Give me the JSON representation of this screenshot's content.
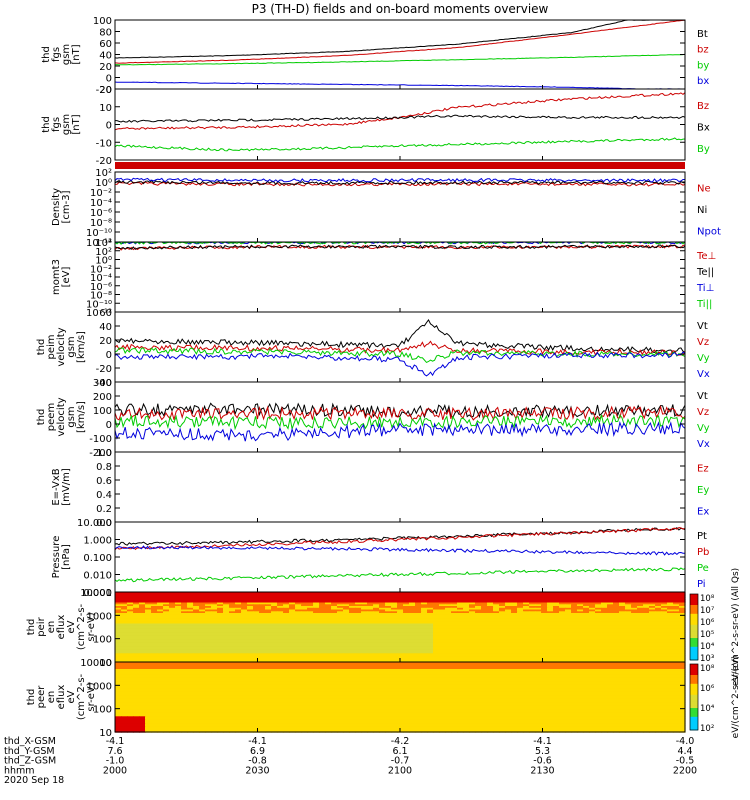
{
  "title": "P3 (TH-D) fields and on-board moments overview",
  "colors": {
    "black": "#000000",
    "red": "#cc0000",
    "green": "#00cc00",
    "blue": "#0000dd",
    "axis": "#000000"
  },
  "chart_data": [
    {
      "type": "line",
      "ylabel": [
        "thd",
        "fgs",
        "gsm",
        "[nT]"
      ],
      "ylim": [
        -20,
        100
      ],
      "ticks": [
        "100",
        "80",
        "60",
        "40",
        "20",
        "0",
        "-20"
      ],
      "legend": [
        {
          "text": "Bt",
          "color": "black"
        },
        {
          "text": "bz",
          "color": "red"
        },
        {
          "text": "by",
          "color": "green"
        },
        {
          "text": "bx",
          "color": "blue"
        }
      ],
      "series": [
        {
          "name": "Bt",
          "color": "black",
          "x": [
            0,
            0.2,
            0.4,
            0.6,
            0.8,
            0.9
          ],
          "y": [
            34,
            38,
            45,
            58,
            78,
            100
          ]
        },
        {
          "name": "bz",
          "color": "red",
          "x": [
            0,
            0.2,
            0.4,
            0.6,
            0.8,
            1.0
          ],
          "y": [
            25,
            30,
            38,
            52,
            75,
            100
          ]
        },
        {
          "name": "by",
          "color": "green",
          "x": [
            0,
            0.2,
            0.4,
            0.6,
            0.8,
            1.0
          ],
          "y": [
            22,
            24,
            27,
            31,
            35,
            40
          ]
        },
        {
          "name": "bx",
          "color": "blue",
          "x": [
            0,
            0.2,
            0.4,
            0.6,
            0.8,
            1.0
          ],
          "y": [
            -8,
            -10,
            -12,
            -14,
            -17,
            -22
          ]
        }
      ]
    },
    {
      "type": "line",
      "ylabel": [
        "thd",
        "fgs",
        "gsm",
        "[nT]"
      ],
      "ylim": [
        -25,
        25
      ],
      "ticks": [
        "20",
        "10",
        "0",
        "-10",
        "-20"
      ],
      "legend": [
        {
          "text": "Bz",
          "color": "red"
        },
        {
          "text": "Bx",
          "color": "black"
        },
        {
          "text": "By",
          "color": "green"
        }
      ],
      "series": [
        {
          "name": "Bz",
          "color": "red",
          "x": [
            0,
            0.2,
            0.4,
            0.5,
            0.6,
            0.8,
            1.0
          ],
          "y": [
            -3,
            -2,
            0,
            5,
            12,
            18,
            22
          ]
        },
        {
          "name": "Bx",
          "color": "black",
          "x": [
            0,
            0.2,
            0.4,
            0.6,
            0.8,
            1.0
          ],
          "y": [
            2,
            3,
            4,
            6,
            5,
            5
          ]
        },
        {
          "name": "By",
          "color": "green",
          "x": [
            0,
            0.2,
            0.35,
            0.5,
            0.7,
            1.0
          ],
          "y": [
            -15,
            -18,
            -17,
            -15,
            -13,
            -10
          ]
        }
      ]
    },
    {
      "type": "line",
      "ylabel": [
        "Density",
        "[cm-3]"
      ],
      "yscale": "log",
      "ylim": [
        1e-12,
        100.0
      ],
      "ticks": [
        "10²",
        "10⁰",
        "10⁻²",
        "10⁻⁴",
        "10⁻⁶",
        "10⁻⁸",
        "10⁻¹⁰",
        "10⁻¹²"
      ],
      "legend": [
        {
          "text": "Ne",
          "color": "red"
        },
        {
          "text": "Ni",
          "color": "black"
        },
        {
          "text": "Npot",
          "color": "blue"
        }
      ],
      "series": [
        {
          "name": "Ne",
          "color": "red",
          "x": [
            0,
            0.3,
            0.6,
            1.0
          ],
          "y": [
            0.5,
            0.3,
            0.4,
            0.3
          ]
        },
        {
          "name": "Ni",
          "color": "black",
          "x": [
            0,
            0.3,
            0.6,
            1.0
          ],
          "y": [
            1.0,
            0.6,
            0.8,
            0.7
          ]
        },
        {
          "name": "Npot",
          "color": "blue",
          "x": [
            0,
            0.3,
            0.6,
            1.0
          ],
          "y": [
            3,
            2,
            2.5,
            2
          ]
        }
      ]
    },
    {
      "type": "line",
      "ylabel": [
        "momt3",
        "[eV]"
      ],
      "yscale": "log",
      "ylim": [
        1e-12,
        10000.0
      ],
      "ticks": [
        "10⁴",
        "10²",
        "10⁰",
        "10⁻²",
        "10⁻⁴",
        "10⁻⁶",
        "10⁻⁸",
        "10⁻¹⁰",
        "10⁻¹²"
      ],
      "legend": [
        {
          "text": "Te⊥",
          "color": "red"
        },
        {
          "text": "Te||",
          "color": "black"
        },
        {
          "text": "Ti⊥",
          "color": "blue"
        },
        {
          "text": "Ti||",
          "color": "green"
        }
      ],
      "series": [
        {
          "name": "Te⊥",
          "color": "red",
          "x": [
            0,
            0.3,
            0.6,
            1.0
          ],
          "y": [
            300,
            800,
            600,
            900
          ]
        },
        {
          "name": "Te||",
          "color": "black",
          "x": [
            0,
            0.3,
            0.6,
            1.0
          ],
          "y": [
            400,
            900,
            700,
            1000
          ]
        },
        {
          "name": "Ti⊥",
          "color": "blue",
          "x": [
            0,
            0.3,
            0.6,
            1.0
          ],
          "y": [
            8000,
            9000,
            9000,
            9500
          ]
        },
        {
          "name": "Ti||",
          "color": "green",
          "x": [
            0,
            0.3,
            0.6,
            1.0
          ],
          "y": [
            7000,
            8000,
            8500,
            9000
          ]
        }
      ]
    },
    {
      "type": "line",
      "ylabel": [
        "thd",
        "peim",
        "velocity",
        "gsm",
        "[km/s]"
      ],
      "ylim": [
        -40,
        60
      ],
      "ticks": [
        "60",
        "40",
        "20",
        "0",
        "-20",
        "-40"
      ],
      "legend": [
        {
          "text": "Vt",
          "color": "black"
        },
        {
          "text": "Vz",
          "color": "red"
        },
        {
          "text": "Vy",
          "color": "green"
        },
        {
          "text": "Vx",
          "color": "blue"
        }
      ],
      "series": [
        {
          "name": "Vt",
          "color": "black",
          "x": [
            0,
            0.3,
            0.5,
            0.55,
            0.6,
            0.8,
            1.0
          ],
          "y": [
            20,
            15,
            12,
            45,
            15,
            8,
            5
          ]
        },
        {
          "name": "Vz",
          "color": "red",
          "x": [
            0,
            0.3,
            0.5,
            0.55,
            0.6,
            0.8,
            1.0
          ],
          "y": [
            10,
            8,
            5,
            15,
            5,
            3,
            2
          ]
        },
        {
          "name": "Vy",
          "color": "green",
          "x": [
            0,
            0.3,
            0.5,
            0.55,
            0.6,
            0.8,
            1.0
          ],
          "y": [
            5,
            3,
            0,
            -10,
            2,
            0,
            0
          ]
        },
        {
          "name": "Vx",
          "color": "blue",
          "x": [
            0,
            0.3,
            0.5,
            0.55,
            0.6,
            0.8,
            1.0
          ],
          "y": [
            -5,
            -3,
            -8,
            -30,
            -5,
            -2,
            -1
          ]
        }
      ]
    },
    {
      "type": "line",
      "ylabel": [
        "thd",
        "peem",
        "velocity",
        "gsm",
        "[km/s]"
      ],
      "ylim": [
        -200,
        300
      ],
      "ticks": [
        "300",
        "200",
        "100",
        "0",
        "-100",
        "-200"
      ],
      "legend": [
        {
          "text": "Vt",
          "color": "black"
        },
        {
          "text": "Vz",
          "color": "red"
        },
        {
          "text": "Vy",
          "color": "green"
        },
        {
          "text": "Vx",
          "color": "blue"
        }
      ],
      "series": [
        {
          "name": "Vt",
          "color": "black",
          "x": [
            0,
            0.25,
            0.5,
            0.75,
            1.0
          ],
          "y": [
            100,
            110,
            90,
            95,
            100
          ]
        },
        {
          "name": "Vz",
          "color": "red",
          "x": [
            0,
            0.25,
            0.5,
            0.75,
            1.0
          ],
          "y": [
            70,
            80,
            70,
            75,
            80
          ]
        },
        {
          "name": "Vy",
          "color": "green",
          "x": [
            0,
            0.25,
            0.5,
            0.75,
            1.0
          ],
          "y": [
            20,
            10,
            10,
            20,
            20
          ]
        },
        {
          "name": "Vx",
          "color": "blue",
          "x": [
            0,
            0.25,
            0.5,
            0.75,
            1.0
          ],
          "y": [
            -60,
            -80,
            -40,
            -40,
            -30
          ]
        }
      ]
    },
    {
      "type": "line",
      "ylabel": [
        "E=-VxB",
        "[mV/m]"
      ],
      "ylim": [
        0,
        1
      ],
      "ticks": [
        "1.0",
        "0.8",
        "0.6",
        "0.4",
        "0.2",
        "0.0"
      ],
      "legend": [
        {
          "text": "Ez",
          "color": "red"
        },
        {
          "text": "Ey",
          "color": "green"
        },
        {
          "text": "Ex",
          "color": "blue"
        }
      ],
      "series": []
    },
    {
      "type": "line",
      "ylabel": [
        "Pressure",
        "[nPa]"
      ],
      "yscale": "log",
      "ylim": [
        0.001,
        20
      ],
      "ticks": [
        "10.000",
        "1.000",
        "0.100",
        "0.010",
        "0.001"
      ],
      "legend": [
        {
          "text": "Pt",
          "color": "black"
        },
        {
          "text": "Pb",
          "color": "red"
        },
        {
          "text": "Pe",
          "color": "green"
        },
        {
          "text": "Pi",
          "color": "blue"
        }
      ],
      "series": [
        {
          "name": "Pt",
          "color": "black",
          "x": [
            0,
            0.2,
            0.4,
            0.6,
            0.8,
            1.0
          ],
          "y": [
            0.9,
            1.1,
            1.6,
            2.5,
            4.5,
            8.0
          ]
        },
        {
          "name": "Pb",
          "color": "red",
          "x": [
            0,
            0.2,
            0.4,
            0.6,
            0.8,
            1.0
          ],
          "y": [
            0.45,
            0.7,
            1.2,
            2.2,
            4.2,
            7.8
          ]
        },
        {
          "name": "Pe",
          "color": "green",
          "x": [
            0,
            0.2,
            0.4,
            0.6,
            0.8,
            1.0
          ],
          "y": [
            0.005,
            0.007,
            0.01,
            0.014,
            0.02,
            0.025
          ]
        },
        {
          "name": "Pi",
          "color": "blue",
          "x": [
            0,
            0.2,
            0.4,
            0.6,
            0.8,
            1.0
          ],
          "y": [
            0.55,
            0.5,
            0.45,
            0.35,
            0.28,
            0.22
          ]
        }
      ]
    },
    {
      "type": "heatmap",
      "ylabel": [
        "thd",
        "peir",
        "en",
        "eflux",
        "eV",
        "(cm^2-s-",
        "sr-eV)"
      ],
      "yscale": "log",
      "ylim": [
        5,
        20000
      ],
      "ticks": [
        "10000",
        "1000",
        "100",
        "10"
      ],
      "colorbar_ticks": [
        "10⁸",
        "10⁷",
        "10⁶",
        "10⁵",
        "10⁴",
        "10³"
      ],
      "colorbar_label": "eV/(cm^2-s-sr-eV) (All Qs)"
    },
    {
      "type": "heatmap",
      "ylabel": [
        "thd",
        "peer",
        "en",
        "eflux",
        "eV",
        "(cm^2-s-",
        "sr-eV)"
      ],
      "yscale": "log",
      "ylim": [
        5,
        20000
      ],
      "ticks": [
        "10000",
        "1000",
        "100",
        "10"
      ],
      "colorbar_ticks": [
        "10⁸",
        "10⁶",
        "10⁴",
        "10²"
      ],
      "colorbar_label": "eV/(cm^2-s-sr-eV)"
    }
  ],
  "time_axis": {
    "row_labels": [
      "thd_X-GSM",
      "thd_Y-GSM",
      "thd_Z-GSM",
      "hhmm",
      "2020 Sep 18"
    ],
    "columns": [
      [
        "-4.1",
        "7.6",
        "-1.0",
        "2000"
      ],
      [
        "-4.1",
        "6.9",
        "-0.8",
        "2030"
      ],
      [
        "-4.2",
        "6.1",
        "-0.7",
        "2100"
      ],
      [
        "-4.1",
        "5.3",
        "-0.6",
        "2130"
      ],
      [
        "-4.0",
        "4.4",
        "-0.5",
        "2200"
      ]
    ]
  }
}
